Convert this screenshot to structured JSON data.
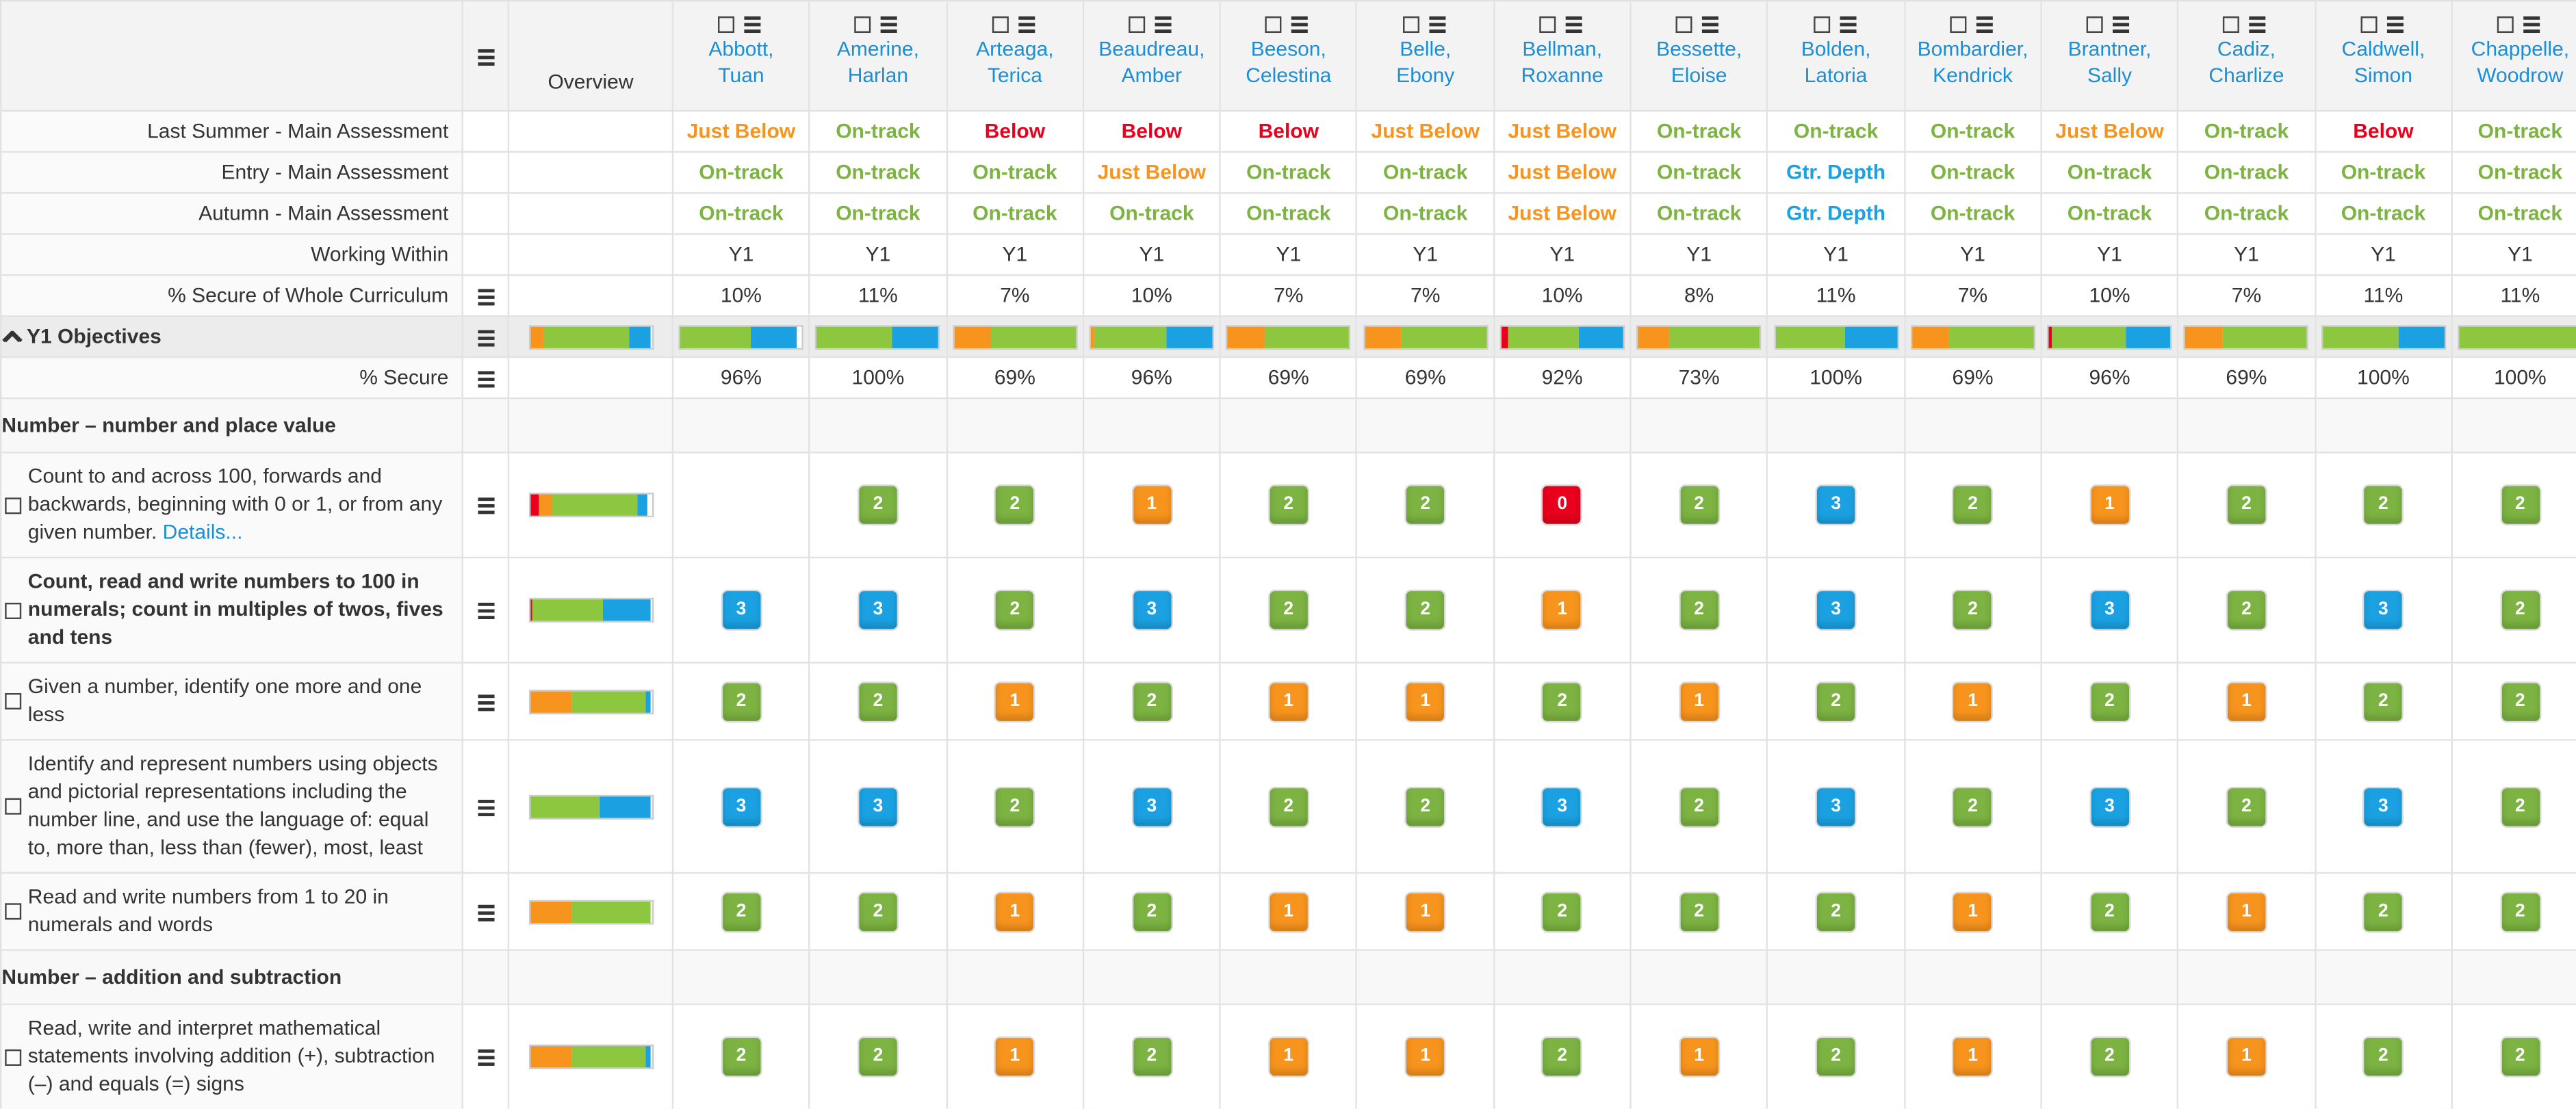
{
  "header": {
    "overview": "Overview"
  },
  "students": [
    "Abbott, Tuan",
    "Amerine, Harlan",
    "Arteaga, Terica",
    "Beaudreau, Amber",
    "Beeson, Celestina",
    "Belle, Ebony",
    "Bellman, Roxanne",
    "Bessette, Eloise",
    "Bolden, Latoria",
    "Bombardier, Kendrick",
    "Brantner, Sally",
    "Cadiz, Charlize",
    "Caldwell, Simon",
    "Chappelle, Woodrow"
  ],
  "status_colors": {
    "Just Below": "#f7941d",
    "On-track": "#7cb342",
    "Below": "#e8001c",
    "Gtr. Depth": "#1ba1e2"
  },
  "score_colors": [
    "#e8001c",
    "#f7941d",
    "#7cb342",
    "#1ba1e2"
  ],
  "bar_colors": [
    "#e8001c",
    "#f7941d",
    "#8dc63f",
    "#1ba1e2"
  ],
  "summary_rows": [
    {
      "label": "Last Summer - Main Assessment",
      "values": [
        "Just Below",
        "On-track",
        "Below",
        "Below",
        "Below",
        "Just Below",
        "Just Below",
        "On-track",
        "On-track",
        "On-track",
        "Just Below",
        "On-track",
        "Below",
        "On-track"
      ]
    },
    {
      "label": "Entry - Main Assessment",
      "values": [
        "On-track",
        "On-track",
        "On-track",
        "Just Below",
        "On-track",
        "On-track",
        "Just Below",
        "On-track",
        "Gtr. Depth",
        "On-track",
        "On-track",
        "On-track",
        "On-track",
        "On-track"
      ]
    },
    {
      "label": "Autumn - Main Assessment",
      "values": [
        "On-track",
        "On-track",
        "On-track",
        "On-track",
        "On-track",
        "On-track",
        "Just Below",
        "On-track",
        "Gtr. Depth",
        "On-track",
        "On-track",
        "On-track",
        "On-track",
        "On-track"
      ]
    },
    {
      "label": "Working Within",
      "values": [
        "Y1",
        "Y1",
        "Y1",
        "Y1",
        "Y1",
        "Y1",
        "Y1",
        "Y1",
        "Y1",
        "Y1",
        "Y1",
        "Y1",
        "Y1",
        "Y1"
      ]
    },
    {
      "label": "% Secure of Whole Curriculum",
      "values": [
        "10%",
        "11%",
        "7%",
        "10%",
        "7%",
        "7%",
        "10%",
        "8%",
        "11%",
        "7%",
        "10%",
        "7%",
        "11%",
        "11%"
      ]
    }
  ],
  "y1": {
    "label": "Y1 Objectives",
    "overview_bar": [
      0,
      12,
      70,
      18
    ],
    "bars": [
      [
        0,
        0,
        58,
        38
      ],
      [
        0,
        0,
        62,
        38
      ],
      [
        0,
        30,
        70,
        0
      ],
      [
        0,
        2,
        60,
        38
      ],
      [
        0,
        30,
        70,
        0
      ],
      [
        0,
        30,
        70,
        0
      ],
      [
        5,
        0,
        58,
        37
      ],
      [
        0,
        25,
        75,
        0
      ],
      [
        0,
        0,
        58,
        42
      ],
      [
        0,
        30,
        70,
        0
      ],
      [
        3,
        0,
        60,
        37
      ],
      [
        0,
        30,
        70,
        0
      ],
      [
        0,
        0,
        62,
        38
      ],
      [
        0,
        0,
        100,
        0
      ]
    ]
  },
  "pct_secure": {
    "label": "% Secure",
    "values": [
      "96%",
      "100%",
      "69%",
      "96%",
      "69%",
      "69%",
      "92%",
      "73%",
      "100%",
      "69%",
      "96%",
      "69%",
      "100%",
      "100%"
    ]
  },
  "sections": [
    {
      "title": "Number – number and place value",
      "objectives": [
        {
          "text": "Count to and across 100, forwards and backwards, beginning with 0 or 1, or from any given number.",
          "link": "Details...",
          "bold": false,
          "bar": [
            8,
            10,
            70,
            8
          ],
          "scores": [
            null,
            2,
            2,
            1,
            2,
            2,
            0,
            2,
            3,
            2,
            1,
            2,
            2,
            2
          ]
        },
        {
          "text": "Count, read and write numbers to 100 in numerals; count in multiples of twos, fives and tens",
          "bold": true,
          "bar": [
            2,
            0,
            58,
            40
          ],
          "scores": [
            3,
            3,
            2,
            3,
            2,
            2,
            1,
            2,
            3,
            2,
            3,
            2,
            3,
            2
          ]
        },
        {
          "text": "Given a number, identify one more and one less",
          "bold": false,
          "bar": [
            0,
            35,
            60,
            5
          ],
          "scores": [
            2,
            2,
            1,
            2,
            1,
            1,
            2,
            1,
            2,
            1,
            2,
            1,
            2,
            2
          ]
        },
        {
          "text": "Identify and represent numbers using objects and pictorial representations including the number line, and use the language of: equal to, more than, less than (fewer), most, least",
          "bold": false,
          "bar": [
            0,
            0,
            58,
            42
          ],
          "scores": [
            3,
            3,
            2,
            3,
            2,
            2,
            3,
            2,
            3,
            2,
            3,
            2,
            3,
            2
          ]
        },
        {
          "text": "Read and write numbers from 1 to 20 in numerals and words",
          "bold": false,
          "bar": [
            0,
            35,
            65,
            0
          ],
          "scores": [
            2,
            2,
            1,
            2,
            1,
            1,
            2,
            2,
            2,
            1,
            2,
            1,
            2,
            2
          ]
        }
      ]
    },
    {
      "title": "Number – addition and subtraction",
      "objectives": [
        {
          "text": "Read, write and interpret mathematical statements involving addition (+), subtraction (–) and equals (=) signs",
          "bold": false,
          "bar": [
            0,
            35,
            60,
            5
          ],
          "scores": [
            2,
            2,
            1,
            2,
            1,
            1,
            2,
            1,
            2,
            1,
            2,
            1,
            2,
            2
          ]
        }
      ]
    }
  ]
}
